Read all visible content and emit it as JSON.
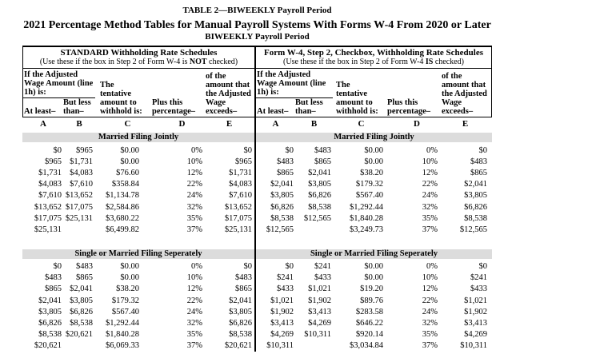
{
  "titles": {
    "line1": "TABLE 2—BIWEEKLY Payroll Period",
    "line2": "2021 Percentage Method Tables for Manual Payroll Systems With Forms W-4 From 2020 or Later",
    "line3": "BIWEEKLY Payroll Period"
  },
  "columns": {
    "wage_caption": "If the Adjusted\nWage Amount (line\n1h) is:",
    "at_least": "At least–",
    "but_less": "But less\nthan–",
    "tentative": "The\ntentative\namount to\nwithhold is:",
    "plus_pct": "Plus this\npercentage–",
    "exceeds": "of the\namount that\nthe Adjusted\nWage\nexceeds–",
    "letters": [
      "A",
      "B",
      "C",
      "D",
      "E"
    ]
  },
  "colors": {
    "band_gray": "#dcdcdc",
    "text": "#000000"
  },
  "schedules": [
    {
      "title": "STANDARD Withholding Rate Schedules",
      "subtitle_pre": "(Use these if the box in Step 2 of Form W-4 is ",
      "subtitle_emph": "NOT",
      "subtitle_post": " checked)",
      "sections": [
        {
          "label": "Married Filing Jointly",
          "rows": [
            [
              "$0",
              "$965",
              "$0.00",
              "0%",
              "$0"
            ],
            [
              "$965",
              "$1,731",
              "$0.00",
              "10%",
              "$965"
            ],
            [
              "$1,731",
              "$4,083",
              "$76.60",
              "12%",
              "$1,731"
            ],
            [
              "$4,083",
              "$7,610",
              "$358.84",
              "22%",
              "$4,083"
            ],
            [
              "$7,610",
              "$13,652",
              "$1,134.78",
              "24%",
              "$7,610"
            ],
            [
              "$13,652",
              "$17,075",
              "$2,584.86",
              "32%",
              "$13,652"
            ],
            [
              "$17,075",
              "$25,131",
              "$3,680.22",
              "35%",
              "$17,075"
            ],
            [
              "$25,131",
              "",
              "$6,499.82",
              "37%",
              "$25,131"
            ]
          ]
        },
        {
          "label": "Single or Married Filing Seperately",
          "rows": [
            [
              "$0",
              "$483",
              "$0.00",
              "0%",
              "$0"
            ],
            [
              "$483",
              "$865",
              "$0.00",
              "10%",
              "$483"
            ],
            [
              "$865",
              "$2,041",
              "$38.20",
              "12%",
              "$865"
            ],
            [
              "$2,041",
              "$3,805",
              "$179.32",
              "22%",
              "$2,041"
            ],
            [
              "$3,805",
              "$6,826",
              "$567.40",
              "24%",
              "$3,805"
            ],
            [
              "$6,826",
              "$8,538",
              "$1,292.44",
              "32%",
              "$6,826"
            ],
            [
              "$8,538",
              "$20,621",
              "$1,840.28",
              "35%",
              "$8,538"
            ],
            [
              "$20,621",
              "",
              "$6,069.33",
              "37%",
              "$20,621"
            ]
          ]
        }
      ]
    },
    {
      "title": "Form W-4, Step 2, Checkbox, Withholding Rate Schedules",
      "subtitle_pre": "(Use these if the box in Step 2 of Form W-4 ",
      "subtitle_emph": "IS",
      "subtitle_post": " checked)",
      "sections": [
        {
          "label": "Married Filing Jointly",
          "rows": [
            [
              "$0",
              "$483",
              "$0.00",
              "0%",
              "$0"
            ],
            [
              "$483",
              "$865",
              "$0.00",
              "10%",
              "$483"
            ],
            [
              "$865",
              "$2,041",
              "$38.20",
              "12%",
              "$865"
            ],
            [
              "$2,041",
              "$3,805",
              "$179.32",
              "22%",
              "$2,041"
            ],
            [
              "$3,805",
              "$6,826",
              "$567.40",
              "24%",
              "$3,805"
            ],
            [
              "$6,826",
              "$8,538",
              "$1,292.44",
              "32%",
              "$6,826"
            ],
            [
              "$8,538",
              "$12,565",
              "$1,840.28",
              "35%",
              "$8,538"
            ],
            [
              "$12,565",
              "",
              "$3,249.73",
              "37%",
              "$12,565"
            ]
          ]
        },
        {
          "label": "Single or Married Filing Seperately",
          "rows": [
            [
              "$0",
              "$241",
              "$0.00",
              "0%",
              "$0"
            ],
            [
              "$241",
              "$433",
              "$0.00",
              "10%",
              "$241"
            ],
            [
              "$433",
              "$1,021",
              "$19.20",
              "12%",
              "$433"
            ],
            [
              "$1,021",
              "$1,902",
              "$89.76",
              "22%",
              "$1,021"
            ],
            [
              "$1,902",
              "$3,413",
              "$283.58",
              "24%",
              "$1,902"
            ],
            [
              "$3,413",
              "$4,269",
              "$646.22",
              "32%",
              "$3,413"
            ],
            [
              "$4,269",
              "$10,311",
              "$920.14",
              "35%",
              "$4,269"
            ],
            [
              "$10,311",
              "",
              "$3,034.84",
              "37%",
              "$10,311"
            ]
          ]
        }
      ]
    }
  ]
}
